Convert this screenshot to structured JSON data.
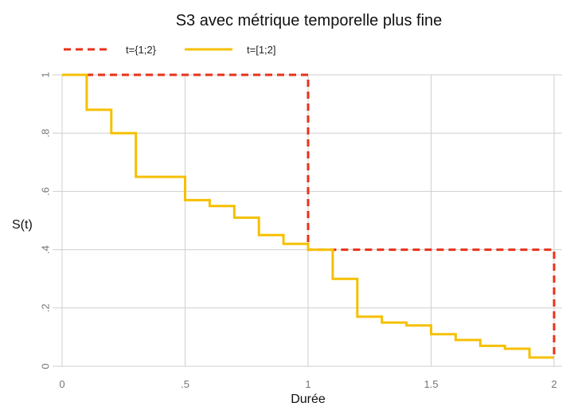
{
  "chart_data": {
    "type": "line",
    "title": "S3 avec métrique temporelle plus fine",
    "xlabel": "Durée",
    "ylabel": "S(t)",
    "xlim": [
      0,
      2
    ],
    "ylim": [
      0,
      1
    ],
    "x_ticks": [
      {
        "value": 0,
        "label": "0"
      },
      {
        "value": 0.5,
        "label": ".5"
      },
      {
        "value": 1,
        "label": "1"
      },
      {
        "value": 1.5,
        "label": "1.5"
      },
      {
        "value": 2,
        "label": "2"
      }
    ],
    "y_ticks": [
      {
        "value": 0,
        "label": "0"
      },
      {
        "value": 0.2,
        "label": ".2"
      },
      {
        "value": 0.4,
        "label": ".4"
      },
      {
        "value": 0.6,
        "label": ".6"
      },
      {
        "value": 0.8,
        "label": ".8"
      },
      {
        "value": 1,
        "label": "1"
      }
    ],
    "grid": true,
    "legend_position": "top-left",
    "step": true,
    "series": [
      {
        "name": "t={1;2}",
        "color": "#e8311a",
        "dash": "dashed",
        "x": [
          0,
          1,
          2
        ],
        "y": [
          1,
          0.4,
          0.03
        ]
      },
      {
        "name": "t=[1;2]",
        "color": "#f5c000",
        "dash": "solid",
        "x": [
          0,
          0.1,
          0.2,
          0.3,
          0.5,
          0.6,
          0.7,
          0.8,
          0.9,
          1.0,
          1.1,
          1.2,
          1.3,
          1.4,
          1.5,
          1.6,
          1.7,
          1.8,
          1.9,
          2.0
        ],
        "y": [
          1,
          0.88,
          0.8,
          0.65,
          0.57,
          0.55,
          0.51,
          0.45,
          0.42,
          0.4,
          0.3,
          0.17,
          0.15,
          0.14,
          0.11,
          0.09,
          0.07,
          0.06,
          0.03,
          0.03
        ]
      }
    ]
  }
}
